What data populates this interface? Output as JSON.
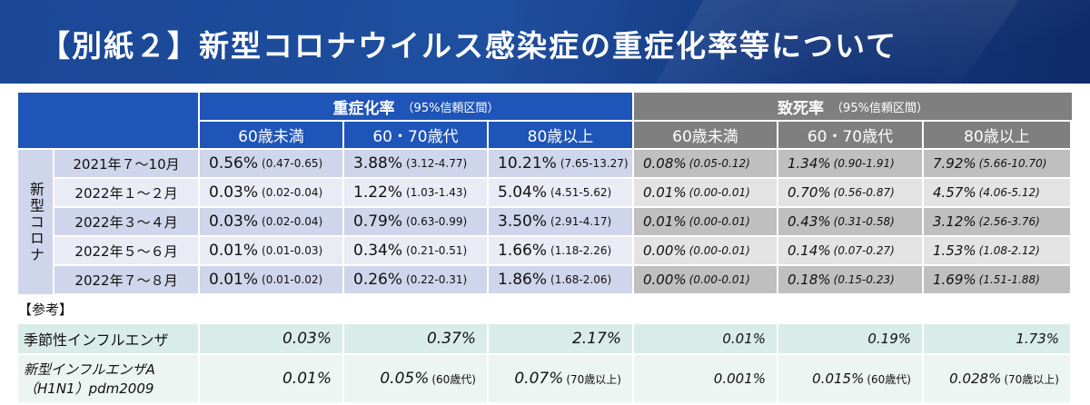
{
  "title": "【別紙２】新型コロナウイルス感染症の重症化率等について",
  "severity_header": {
    "label": "重症化率",
    "ci": "（95%信頼区間）"
  },
  "fatality_header": {
    "label": "致死率",
    "ci": "（95%信頼区間）"
  },
  "age_groups": [
    "60歳未満",
    "60・70歳代",
    "80歳以上"
  ],
  "side_label": "新型コロナ",
  "rows": [
    {
      "period": "2021年７～10月",
      "sev": [
        [
          "0.56%",
          "(0.47-0.65)"
        ],
        [
          "3.88%",
          "(3.12-4.77)"
        ],
        [
          "10.21%",
          "(7.65-13.27)"
        ]
      ],
      "fat": [
        [
          "0.08%",
          "(0.05-0.12)"
        ],
        [
          "1.34%",
          "(0.90-1.91)"
        ],
        [
          "7.92%",
          "(5.66-10.70)"
        ]
      ]
    },
    {
      "period": "2022年１～２月",
      "sev": [
        [
          "0.03%",
          "(0.02-0.04)"
        ],
        [
          "1.22%",
          "(1.03-1.43)"
        ],
        [
          "5.04%",
          "(4.51-5.62)"
        ]
      ],
      "fat": [
        [
          "0.01%",
          "(0.00-0.01)"
        ],
        [
          "0.70%",
          "(0.56-0.87)"
        ],
        [
          "4.57%",
          "(4.06-5.12)"
        ]
      ]
    },
    {
      "period": "2022年３～４月",
      "sev": [
        [
          "0.03%",
          "(0.02-0.04)"
        ],
        [
          "0.79%",
          "(0.63-0.99)"
        ],
        [
          "3.50%",
          "(2.91-4.17)"
        ]
      ],
      "fat": [
        [
          "0.01%",
          "(0.00-0.01)"
        ],
        [
          "0.43%",
          "(0.31-0.58)"
        ],
        [
          "3.12%",
          "(2.56-3.76)"
        ]
      ]
    },
    {
      "period": "2022年５～６月",
      "sev": [
        [
          "0.01%",
          "(0.01-0.03)"
        ],
        [
          "0.34%",
          "(0.21-0.51)"
        ],
        [
          "1.66%",
          "(1.18-2.26)"
        ]
      ],
      "fat": [
        [
          "0.00%",
          "(0.00-0.01)"
        ],
        [
          "0.14%",
          "(0.07-0.27)"
        ],
        [
          "1.53%",
          "(1.08-2.12)"
        ]
      ]
    },
    {
      "period": "2022年７～８月",
      "sev": [
        [
          "0.01%",
          "(0.01-0.02)"
        ],
        [
          "0.26%",
          "(0.22-0.31)"
        ],
        [
          "1.86%",
          "(1.68-2.06)"
        ]
      ],
      "fat": [
        [
          "0.00%",
          "(0.00-0.01)"
        ],
        [
          "0.18%",
          "(0.15-0.23)"
        ],
        [
          "1.69%",
          "(1.51-1.88)"
        ]
      ]
    }
  ],
  "reference": {
    "label": "【参考】",
    "seasonal": {
      "name": "季節性インフルエンザ",
      "sev": [
        "0.03%",
        "0.37%",
        "2.17%"
      ],
      "fat": [
        "0.01%",
        "0.19%",
        "1.73%"
      ]
    },
    "pandemic": {
      "name_line1": "新型インフルエンザA",
      "name_line2": "（H1N1）pdm2009",
      "sev": [
        [
          "0.01%",
          ""
        ],
        [
          "0.05%",
          "(60歳代)"
        ],
        [
          "0.07%",
          "(70歳以上)"
        ]
      ],
      "fat": [
        [
          "0.001%",
          ""
        ],
        [
          "0.015%",
          "(60歳代)"
        ],
        [
          "0.028%",
          "(70歳以上)"
        ]
      ]
    }
  },
  "colors": {
    "banner": "#1f4f9f",
    "severity_header": "#1f55b8",
    "fatality_header": "#7f7f7f"
  }
}
